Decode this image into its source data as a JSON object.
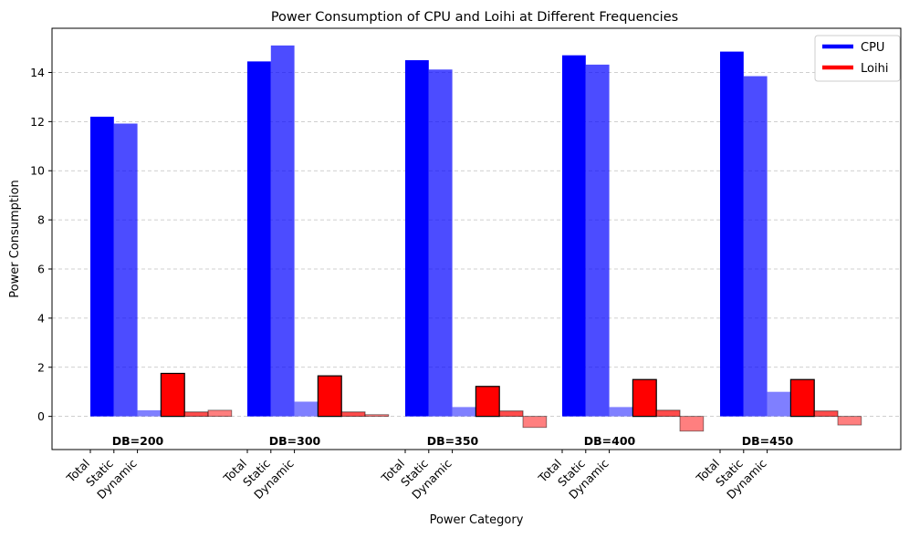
{
  "chart_data": {
    "type": "bar",
    "title": "Power Consumption of CPU and Loihi at Different Frequencies",
    "xlabel": "Power Category",
    "ylabel": "Power Consumption",
    "ylim": [
      -1.35,
      15.8
    ],
    "yticks": [
      0,
      2,
      4,
      6,
      8,
      10,
      12,
      14
    ],
    "grid": "horizontal dashed",
    "legend_position": "top-right",
    "groups": [
      "DB=200",
      "DB=300",
      "DB=350",
      "DB=400",
      "DB=450"
    ],
    "categories": [
      "Total",
      "Static",
      "Dynamic"
    ],
    "series": [
      {
        "name": "CPU",
        "color": "#0000ff",
        "values": {
          "Total": [
            12.2,
            14.45,
            14.5,
            14.7,
            14.85
          ],
          "Static": [
            11.92,
            15.1,
            14.12,
            14.32,
            13.85
          ],
          "Dynamic": [
            0.25,
            0.6,
            0.38,
            0.38,
            1.0
          ]
        }
      },
      {
        "name": "Loihi",
        "color": "#ff0000",
        "values": {
          "Total": [
            1.75,
            1.65,
            1.22,
            1.5,
            1.5
          ],
          "Static": [
            0.18,
            0.18,
            0.22,
            0.25,
            0.22
          ],
          "Dynamic": [
            0.25,
            0.07,
            -0.45,
            -0.6,
            -0.35
          ]
        }
      }
    ]
  }
}
